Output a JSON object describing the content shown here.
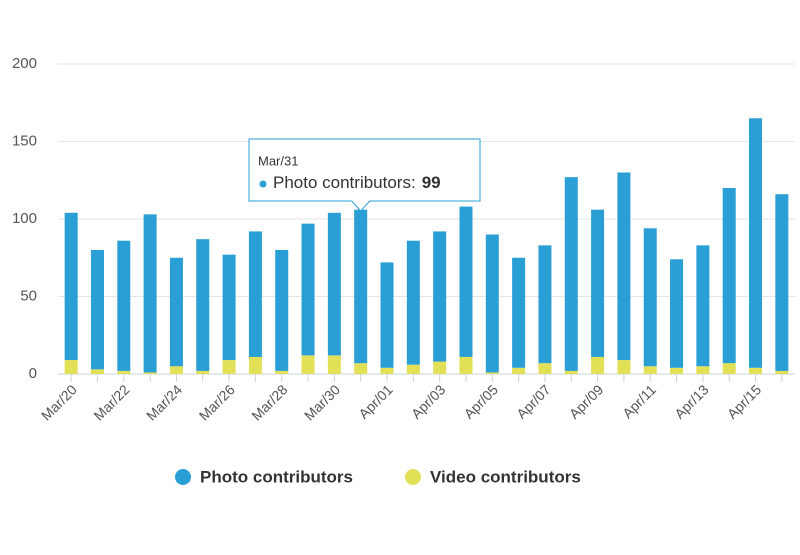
{
  "chart_data": {
    "type": "stacked-bar",
    "categories": [
      "Mar/20",
      null,
      "Mar/22",
      null,
      "Mar/24",
      null,
      "Mar/26",
      null,
      "Mar/28",
      null,
      "Mar/30",
      null,
      "Apr/01",
      null,
      "Apr/03",
      null,
      "Apr/05",
      null,
      "Apr/07",
      null,
      "Apr/09",
      null,
      "Apr/11",
      null,
      "Apr/13",
      null,
      "Apr/15",
      null
    ],
    "series": [
      {
        "name": "Photo contributors",
        "color": "#2a9fd6",
        "values": [
          95,
          77,
          84,
          102,
          70,
          85,
          68,
          81,
          78,
          85,
          92,
          99,
          68,
          80,
          84,
          97,
          89,
          71,
          76,
          125,
          95,
          121,
          89,
          70,
          78,
          113,
          161,
          114
        ]
      },
      {
        "name": "Video contributors",
        "color": "#e2e057",
        "values": [
          9,
          3,
          2,
          1,
          5,
          2,
          9,
          11,
          2,
          12,
          12,
          7,
          4,
          6,
          8,
          11,
          1,
          4,
          7,
          2,
          11,
          9,
          5,
          4,
          5,
          7,
          4,
          2
        ]
      }
    ],
    "ylim": [
      0,
      200
    ],
    "yticks": [
      0,
      50,
      100,
      150,
      200
    ],
    "grid": true,
    "tooltip": {
      "category": "Mar/31",
      "label": "Photo contributors:",
      "value": 99
    }
  }
}
